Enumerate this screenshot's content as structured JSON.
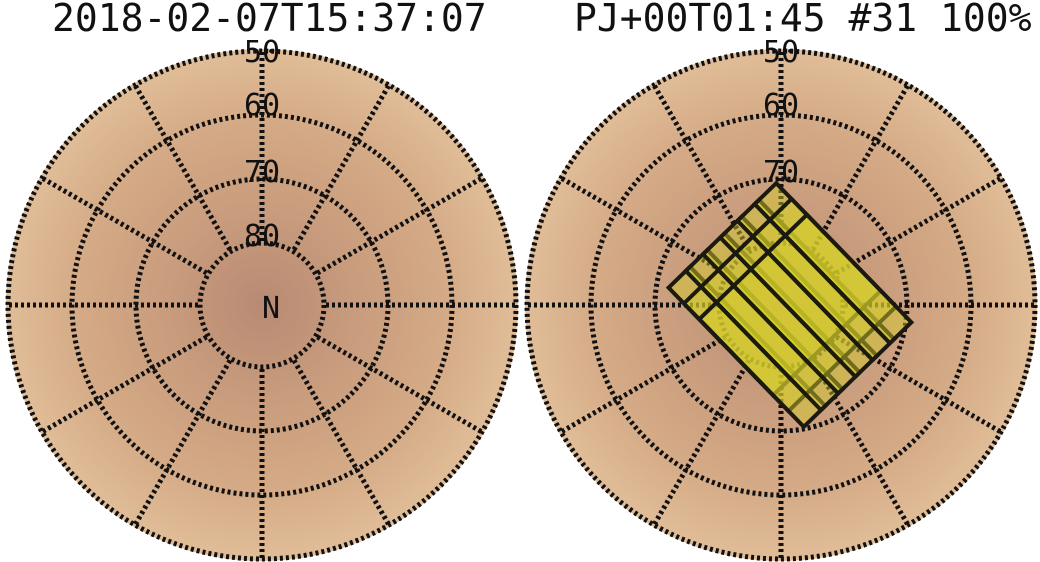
{
  "header": {
    "timestamp": "2018-02-07T15:37:07",
    "status": "PJ+00T01:45 #31 100%"
  },
  "maps": [
    {
      "name": "map-left",
      "pole_label": "N",
      "lat_labels": [
        "50",
        "60",
        "70",
        "80"
      ],
      "has_footprints": false
    },
    {
      "name": "map-right",
      "pole_label": "",
      "lat_labels": [
        "50",
        "60",
        "70"
      ],
      "has_footprints": true
    }
  ],
  "colors": {
    "surface": "#c89a78",
    "surface_light": "#e2c3a0",
    "grid": "#111111",
    "footprint_fill": "#d8d02a",
    "footprint_stroke": "#1a1a10"
  }
}
